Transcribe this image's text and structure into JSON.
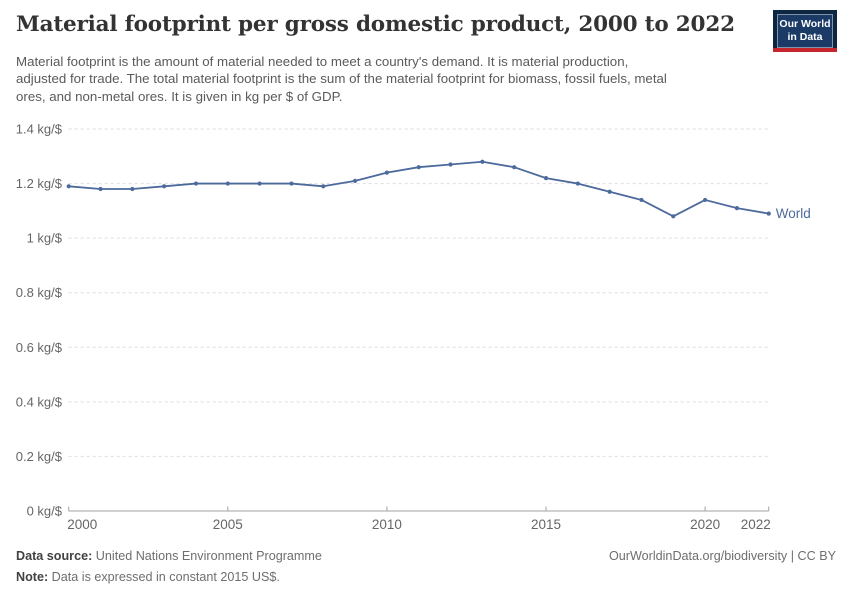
{
  "header": {
    "title": "Material footprint per gross domestic product, 2000 to 2022",
    "subtitle_lines": [
      "Material footprint is the amount of material needed to meet a country's demand. It is material production,",
      "adjusted for trade. The total material footprint is the sum of the material footprint for biomass, fossil fuels, metal",
      "ores, and non-metal ores. It is given in kg per $ of GDP."
    ]
  },
  "logo": {
    "line1": "Our World",
    "line2": "in Data",
    "background_color": "#0d2743",
    "accent_color": "#c5262c"
  },
  "chart_data": {
    "type": "line",
    "title": "Material footprint per gross domestic product, 2000 to 2022",
    "xlabel": "",
    "ylabel": "kg per $ of GDP",
    "x": [
      2000,
      2001,
      2002,
      2003,
      2004,
      2005,
      2006,
      2007,
      2008,
      2009,
      2010,
      2011,
      2012,
      2013,
      2014,
      2015,
      2016,
      2017,
      2018,
      2019,
      2020,
      2021,
      2022
    ],
    "series": [
      {
        "name": "World",
        "values": [
          1.19,
          1.18,
          1.18,
          1.19,
          1.2,
          1.2,
          1.2,
          1.2,
          1.19,
          1.21,
          1.24,
          1.26,
          1.27,
          1.28,
          1.26,
          1.22,
          1.2,
          1.17,
          1.14,
          1.08,
          1.14,
          1.11,
          1.09
        ]
      }
    ],
    "ylim": [
      0,
      1.4
    ],
    "yticks": [
      {
        "value": 0,
        "label": "0 kg/$"
      },
      {
        "value": 0.2,
        "label": "0.2 kg/$"
      },
      {
        "value": 0.4,
        "label": "0.4 kg/$"
      },
      {
        "value": 0.6,
        "label": "0.6 kg/$"
      },
      {
        "value": 0.8,
        "label": "0.8 kg/$"
      },
      {
        "value": 1,
        "label": "1 kg/$"
      },
      {
        "value": 1.2,
        "label": "1.2 kg/$"
      },
      {
        "value": 1.4,
        "label": "1.4 kg/$"
      }
    ],
    "xticks": [
      {
        "value": 2000,
        "label": "2000"
      },
      {
        "value": 2005,
        "label": "2005"
      },
      {
        "value": 2010,
        "label": "2010"
      },
      {
        "value": 2015,
        "label": "2015"
      },
      {
        "value": 2020,
        "label": "2020"
      },
      {
        "value": 2022,
        "label": "2022"
      }
    ],
    "grid": "horizontal-dashed",
    "legend_position": "end-of-line",
    "end_label": "World",
    "colors": {
      "line": "#4c6a9c",
      "grid": "#dddddd",
      "axis": "#a3a3a3",
      "tick_label": "#666666"
    }
  },
  "footer": {
    "source_label": "Data source:",
    "source_value": " United Nations Environment Programme",
    "note_label": "Note:",
    "note_value": " Data is expressed in constant 2015 US$.",
    "attribution": "OurWorldinData.org/biodiversity | CC BY"
  }
}
